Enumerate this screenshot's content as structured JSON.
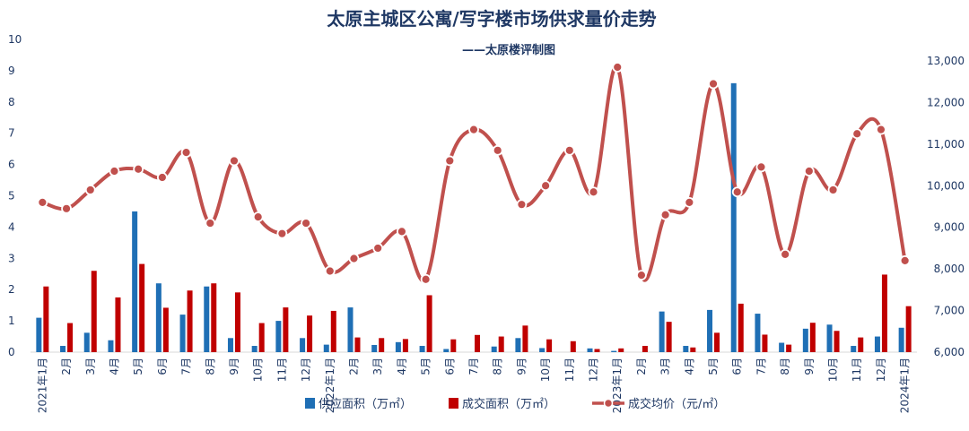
{
  "chart_data": {
    "type": "bar",
    "title": "太原主城区公寓/写字楼市场供求量价走势",
    "subtitle": "——太原楼评制图",
    "categories": [
      "2021年1月",
      "2月",
      "3月",
      "4月",
      "5月",
      "6月",
      "7月",
      "8月",
      "9月",
      "10月",
      "11月",
      "12月",
      "2022年1月",
      "2月",
      "3月",
      "4月",
      "5月",
      "6月",
      "7月",
      "8月",
      "9月",
      "10月",
      "11月",
      "12月",
      "2023年1月",
      "2月",
      "3月",
      "4月",
      "5月",
      "6月",
      "7月",
      "8月",
      "9月",
      "10月",
      "11月",
      "12月",
      "2024年1月"
    ],
    "y_left": {
      "ylim": [
        0,
        10
      ],
      "ticks": [
        "0",
        "1",
        "2",
        "3",
        "4",
        "5",
        "6",
        "7",
        "8",
        "9",
        "10"
      ]
    },
    "y_right": {
      "ylim": [
        6000,
        13000
      ],
      "ticks": [
        "6,000",
        "7,000",
        "8,000",
        "9,000",
        "10,000",
        "11,000",
        "12,000",
        "13,000"
      ]
    },
    "series": [
      {
        "name": "供应面积（万㎡）",
        "type": "bar",
        "axis": "left",
        "color": "#1f6fb5",
        "values": [
          1.1,
          0.2,
          0.62,
          0.38,
          4.5,
          2.2,
          1.2,
          2.1,
          0.45,
          0.2,
          1.0,
          0.45,
          0.24,
          1.43,
          0.23,
          0.32,
          0.2,
          0.1,
          0.0,
          0.18,
          0.45,
          0.13,
          0.0,
          0.12,
          0.04,
          0.0,
          1.3,
          0.2,
          1.35,
          8.6,
          1.23,
          0.3,
          0.75,
          0.88,
          0.2,
          0.5,
          0.78
        ]
      },
      {
        "name": "成交面积（万㎡）",
        "type": "bar",
        "axis": "left",
        "color": "#c00000",
        "values": [
          2.1,
          0.93,
          2.6,
          1.75,
          2.82,
          1.42,
          1.97,
          2.2,
          1.91,
          0.93,
          1.43,
          1.17,
          1.32,
          0.47,
          0.45,
          0.42,
          1.82,
          0.41,
          0.55,
          0.5,
          0.85,
          0.41,
          0.35,
          0.1,
          0.12,
          0.2,
          0.97,
          0.15,
          0.62,
          1.55,
          0.56,
          0.24,
          0.94,
          0.68,
          0.47,
          2.48,
          1.47
        ]
      },
      {
        "name": "成交均价（元/㎡）",
        "type": "line",
        "axis": "right",
        "color": "#c0504d",
        "values": [
          9600,
          9450,
          9900,
          10350,
          10400,
          10200,
          10800,
          9100,
          10600,
          9250,
          8850,
          9100,
          7950,
          8250,
          8500,
          8900,
          7750,
          10600,
          11350,
          10850,
          9550,
          10000,
          10850,
          9850,
          12850,
          7850,
          9300,
          9600,
          12450,
          9850,
          10450,
          8350,
          10350,
          9900,
          11250,
          11350,
          8200
        ]
      }
    ]
  }
}
